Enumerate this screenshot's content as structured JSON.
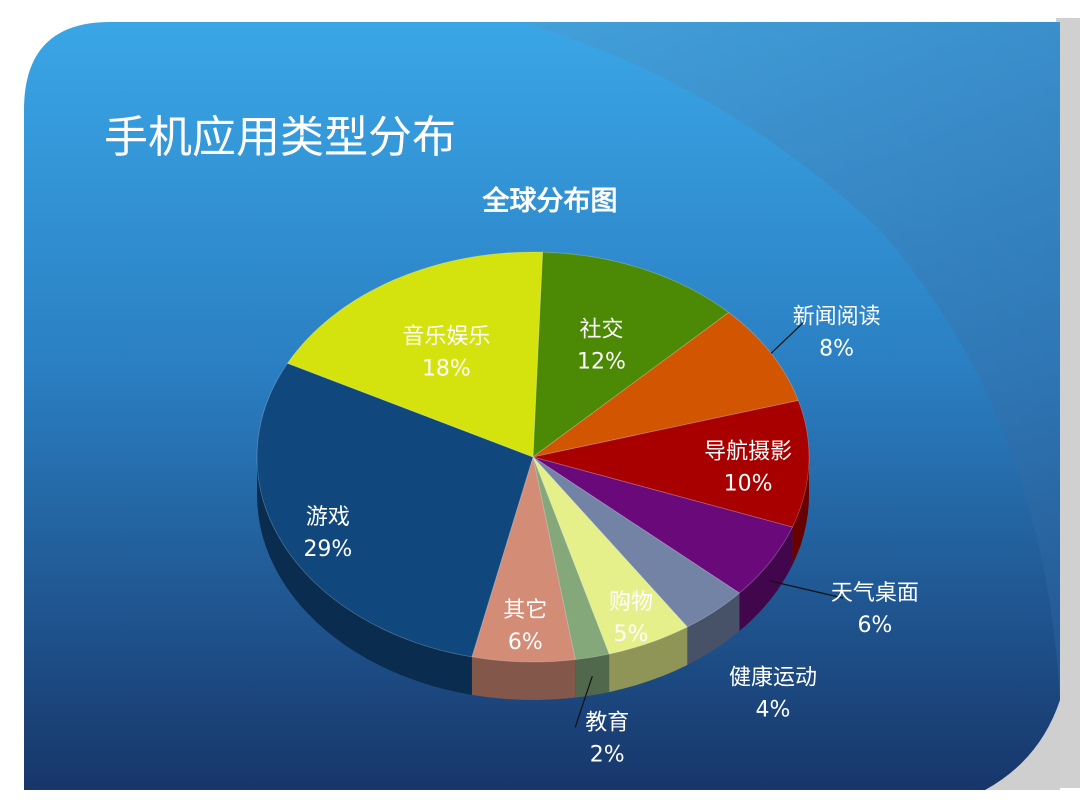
{
  "slide": {
    "title": "手机应用类型分布"
  },
  "colors": {
    "background_light": "#3aa6e6",
    "background_dark": "#17366a",
    "text": "#ffffff"
  },
  "chart_data": {
    "type": "pie",
    "title": "全球分布图",
    "three_d": true,
    "slices": [
      {
        "category": "社交",
        "value": 12,
        "label": "12%",
        "color": "#4c8a06"
      },
      {
        "category": "新闻阅读",
        "value": 8,
        "label": "8%",
        "color": "#d25502"
      },
      {
        "category": "导航摄影",
        "value": 10,
        "label": "10%",
        "color": "#a80000"
      },
      {
        "category": "天气桌面",
        "value": 6,
        "label": "6%",
        "color": "#6a0a7a"
      },
      {
        "category": "健康运动",
        "value": 4,
        "label": "4%",
        "color": "#7383a6"
      },
      {
        "category": "购物",
        "value": 5,
        "label": "5%",
        "color": "#e6f08a"
      },
      {
        "category": "教育",
        "value": 2,
        "label": "2%",
        "color": "#84a87a"
      },
      {
        "category": "其它",
        "value": 6,
        "label": "6%",
        "color": "#d38c76"
      },
      {
        "category": "游戏",
        "value": 29,
        "label": "29%",
        "color": "#10477d"
      },
      {
        "category": "音乐娱乐",
        "value": 18,
        "label": "18%",
        "color": "#d4e30e"
      }
    ]
  }
}
